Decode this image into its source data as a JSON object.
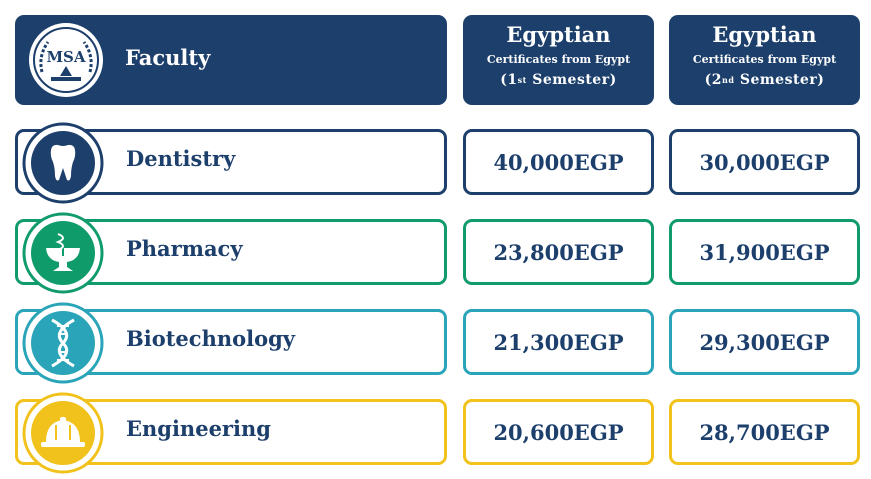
{
  "header": {
    "logo_text": "MSA",
    "faculty_label": "Faculty",
    "columns": [
      {
        "title": "Egyptian",
        "subtitle": "Certificates from Egypt",
        "semester_num": "1",
        "semester_sup": "st",
        "semester_word": "Semester"
      },
      {
        "title": "Egyptian",
        "subtitle": "Certificates from Egypt",
        "semester_num": "2",
        "semester_sup": "nd",
        "semester_word": "Semester"
      }
    ]
  },
  "rows": [
    {
      "faculty": "Dentistry",
      "icon": "tooth-icon",
      "color": "#1d3f6c",
      "sem1": "40,000EGP",
      "sem2": "30,000EGP"
    },
    {
      "faculty": "Pharmacy",
      "icon": "pharmacy-bowl-icon",
      "color": "#109b6b",
      "sem1": "23,800EGP",
      "sem2": "31,900EGP"
    },
    {
      "faculty": "Biotechnology",
      "icon": "dna-icon",
      "color": "#29a4b8",
      "sem1": "21,300EGP",
      "sem2": "29,300EGP"
    },
    {
      "faculty": "Engineering",
      "icon": "hard-hat-icon",
      "color": "#f1c21b",
      "sem1": "20,600EGP",
      "sem2": "28,700EGP"
    }
  ]
}
